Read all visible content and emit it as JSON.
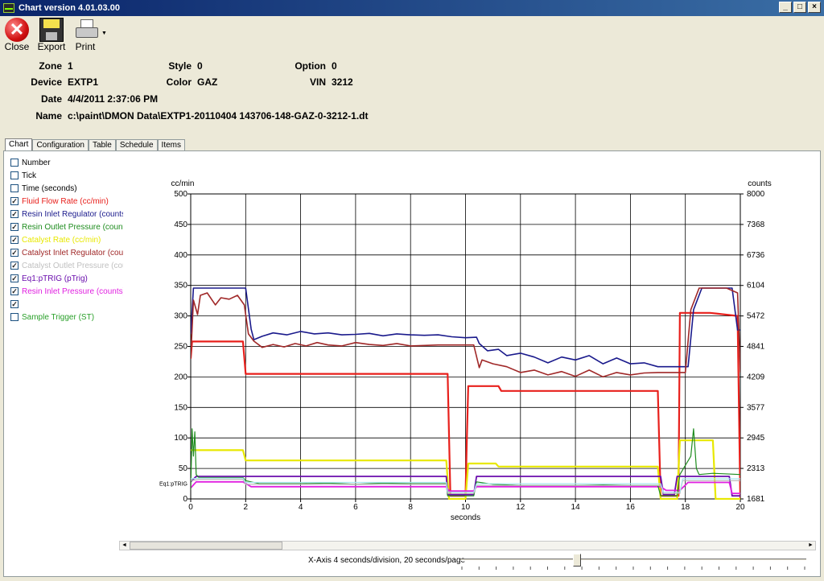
{
  "window": {
    "title": "Chart  version  4.01.03.00",
    "minimize": "_",
    "maximize": "□",
    "close": "×"
  },
  "toolbar": {
    "close_label": "Close",
    "close_glyph": "✕",
    "export_label": "Export",
    "print_label": "Print",
    "print_dropdown": "▼"
  },
  "info": {
    "zone_label": "Zone",
    "zone_value": "1",
    "style_label": "Style",
    "style_value": "0",
    "option_label": "Option",
    "option_value": "0",
    "device_label": "Device",
    "device_value": "EXTP1",
    "color_label": "Color",
    "color_value": "GAZ",
    "vin_label": "VIN",
    "vin_value": "3212",
    "date_label": "Date",
    "date_value": "4/4/2011 2:37:06 PM",
    "name_label": "Name",
    "name_value": "c:\\paint\\DMON  Data\\EXTP1-20110404  143706-148-GAZ-0-3212-1.dt"
  },
  "tabs": [
    "Chart",
    "Configuration",
    "Table",
    "Schedule",
    "Items"
  ],
  "legend": [
    {
      "label": "Number",
      "checked": false,
      "color": "#000000"
    },
    {
      "label": "Tick",
      "checked": false,
      "color": "#000000"
    },
    {
      "label": "Time (seconds)",
      "checked": false,
      "color": "#000000"
    },
    {
      "label": "Fluid Flow Rate (cc/min)",
      "checked": true,
      "color": "#e8201c"
    },
    {
      "label": "Resin Inlet Regulator (counts)",
      "checked": true,
      "color": "#1a1a8c"
    },
    {
      "label": "Resin Outlet Pressure (counts)",
      "checked": true,
      "color": "#1e8c1e"
    },
    {
      "label": "Catalyst Rate (cc/min)",
      "checked": true,
      "color": "#e8e800"
    },
    {
      "label": "Catalyst Inlet Regulator (counts)",
      "checked": true,
      "color": "#a02828"
    },
    {
      "label": "Catalyst Outlet Pressure (counts)",
      "checked": true,
      "color": "#c0c0c0"
    },
    {
      "label": "Eq1:pTRIG (pTrig)",
      "checked": true,
      "color": "#6a0dad"
    },
    {
      "label": "Resin Inlet Pressure (counts)",
      "checked": true,
      "color": "#e020e0"
    },
    {
      "label": "",
      "checked": true,
      "color": "#a8e8f0"
    },
    {
      "label": "Sample Trigger (ST)",
      "checked": false,
      "color": "#2aa02a"
    }
  ],
  "scroll": {
    "left": "◄",
    "right": "►"
  },
  "footer": {
    "xaxis_text": "X-Axis 4 seconds/division, 20 seconds/page"
  },
  "chart_data": {
    "type": "line",
    "xlabel": "seconds",
    "ylabel_left": "cc/min",
    "ylabel_right": "counts",
    "xlim": [
      0,
      20
    ],
    "ylim_left": [
      0,
      500
    ],
    "ylim_right": [
      1681,
      8000
    ],
    "x_ticks": [
      "0",
      "2",
      "4",
      "6",
      "8",
      "10",
      "12",
      "14",
      "16",
      "18",
      "20"
    ],
    "y_ticks_left": [
      "0",
      "50",
      "100",
      "150",
      "200",
      "250",
      "300",
      "350",
      "400",
      "450",
      "500"
    ],
    "y_ticks_right": [
      "1681",
      "2313",
      "2945",
      "3577",
      "4209",
      "4841",
      "5472",
      "6104",
      "6736",
      "7368",
      "8000"
    ],
    "annotation": "Eq1:pTRIG",
    "grid": true,
    "series": [
      {
        "name": "Fluid Flow Rate (cc/min)",
        "axis": "left",
        "color": "#e8201c",
        "width": 2.2,
        "x": [
          0,
          0.05,
          1.9,
          2.0,
          9.35,
          9.45,
          9.9,
          10.0,
          10.05,
          10.1,
          11.2,
          11.3,
          17.0,
          17.1,
          17.75,
          17.8,
          18.9,
          19.9,
          20.0
        ],
        "y": [
          230,
          258,
          258,
          205,
          205,
          5,
          5,
          5,
          100,
          185,
          185,
          177,
          177,
          5,
          5,
          305,
          305,
          300,
          0
        ]
      },
      {
        "name": "Resin Inlet Regulator (counts)",
        "axis": "right",
        "color": "#1a1a8c",
        "width": 1.6,
        "x": [
          0,
          0.1,
          0.2,
          1.2,
          2.0,
          2.2,
          2.3,
          2.6,
          3.0,
          3.5,
          4.0,
          4.5,
          5.0,
          5.5,
          6.0,
          6.5,
          7.0,
          7.5,
          8.0,
          8.5,
          9.0,
          9.5,
          10.0,
          10.4,
          10.5,
          10.8,
          11.2,
          11.5,
          12.0,
          12.5,
          13.0,
          13.5,
          14.0,
          14.5,
          15.0,
          15.5,
          16.0,
          16.5,
          17.0,
          17.3,
          17.6,
          17.8,
          18.1,
          18.3,
          18.6,
          18.9,
          19.3,
          19.7,
          19.9,
          20.0
        ],
        "y": [
          5100,
          6050,
          6050,
          6050,
          6050,
          5200,
          4980,
          5050,
          5120,
          5080,
          5150,
          5100,
          5120,
          5080,
          5090,
          5110,
          5060,
          5100,
          5080,
          5070,
          5080,
          5040,
          5020,
          5030,
          4900,
          4750,
          4780,
          4650,
          4700,
          4620,
          4500,
          4620,
          4560,
          4650,
          4480,
          4600,
          4480,
          4500,
          4420,
          4420,
          4420,
          4420,
          4420,
          5600,
          6050,
          6050,
          6050,
          6050,
          5180,
          5180
        ]
      },
      {
        "name": "Catalyst Inlet Regulator (counts)",
        "axis": "right",
        "color": "#a02828",
        "width": 1.6,
        "x": [
          0,
          0.1,
          0.25,
          0.35,
          0.6,
          0.9,
          1.1,
          1.4,
          1.7,
          1.95,
          2.1,
          2.3,
          2.6,
          3.0,
          3.4,
          3.8,
          4.2,
          4.6,
          5.0,
          5.5,
          6.0,
          6.5,
          7.0,
          7.5,
          8.0,
          8.5,
          9.0,
          9.5,
          10.0,
          10.3,
          10.5,
          10.6,
          11.0,
          11.5,
          12.0,
          12.5,
          13.0,
          13.5,
          14.0,
          14.5,
          15.0,
          15.5,
          16.0,
          16.5,
          17.0,
          17.3,
          17.8,
          18.0,
          18.2,
          18.5,
          19.0,
          19.5,
          19.9,
          20.0
        ],
        "y": [
          4600,
          5800,
          5500,
          5900,
          5950,
          5700,
          5850,
          5820,
          5900,
          5700,
          5100,
          4950,
          4820,
          4880,
          4830,
          4900,
          4850,
          4920,
          4870,
          4850,
          4920,
          4880,
          4860,
          4900,
          4850,
          4860,
          4870,
          4870,
          4870,
          4870,
          4400,
          4560,
          4480,
          4420,
          4300,
          4350,
          4250,
          4320,
          4220,
          4350,
          4210,
          4300,
          4250,
          4290,
          4300,
          4300,
          4300,
          4300,
          5600,
          6050,
          6050,
          6050,
          5950,
          4300
        ]
      },
      {
        "name": "Catalyst Rate (cc/min)",
        "axis": "left",
        "color": "#e8e800",
        "width": 2.2,
        "x": [
          0,
          1.9,
          2.0,
          9.3,
          9.4,
          10.0,
          10.1,
          11.1,
          11.2,
          17.0,
          17.1,
          17.7,
          17.8,
          19.0,
          19.1,
          20.0
        ],
        "y": [
          80,
          80,
          63,
          63,
          0,
          0,
          58,
          58,
          53,
          53,
          0,
          0,
          96,
          96,
          0,
          0
        ]
      },
      {
        "name": "Eq1:pTRIG (pTrig)",
        "axis": "left",
        "color": "#6a0dad",
        "width": 1.8,
        "x": [
          0,
          0.2,
          1.9,
          2.0,
          9.3,
          9.35,
          10.3,
          10.4,
          17.1,
          17.2,
          17.6,
          17.7,
          19.6,
          19.7,
          20.0
        ],
        "y": [
          28,
          37,
          37,
          37,
          37,
          7,
          7,
          37,
          37,
          7,
          7,
          37,
          37,
          5,
          5
        ]
      },
      {
        "name": "Resin Inlet Pressure (counts)",
        "axis": "left",
        "color": "#e020e0",
        "width": 1.8,
        "x": [
          0,
          0.2,
          1.9,
          2.2,
          9.3,
          9.4,
          10.3,
          10.4,
          17.1,
          17.3,
          17.8,
          18.1,
          19.6,
          19.7,
          20.0
        ],
        "y": [
          18,
          28,
          28,
          20,
          20,
          13,
          13,
          20,
          20,
          14,
          14,
          27,
          27,
          9,
          9
        ]
      },
      {
        "name": "Resin Outlet Pressure (counts)",
        "axis": "left",
        "color": "#1e8c1e",
        "width": 1.2,
        "x": [
          0,
          0.05,
          0.1,
          0.15,
          0.2,
          0.3,
          1.9,
          2.0,
          2.5,
          3,
          4,
          5,
          6,
          7,
          8,
          9,
          9.3,
          9.35,
          10.3,
          10.4,
          11,
          12,
          13,
          14,
          15,
          16,
          17.0,
          17.1,
          17.7,
          17.8,
          18.2,
          18.3,
          18.4,
          18.5,
          19.0,
          20.0
        ],
        "y": [
          15,
          115,
          70,
          110,
          40,
          35,
          35,
          30,
          25,
          25,
          25,
          26,
          24,
          26,
          25,
          25,
          25,
          5,
          5,
          28,
          24,
          22,
          22,
          22,
          23,
          22,
          22,
          5,
          5,
          40,
          70,
          115,
          50,
          40,
          42,
          40
        ]
      },
      {
        "name": "Catalyst Outlet Pressure (counts)",
        "axis": "left",
        "color": "#b8b8b8",
        "width": 1.2,
        "x": [
          0,
          0.3,
          1.9,
          2.0,
          9.3,
          9.35,
          10.3,
          10.4,
          17.1,
          17.2,
          17.8,
          17.9,
          19.6,
          20.0
        ],
        "y": [
          30,
          32,
          32,
          24,
          24,
          9,
          9,
          22,
          22,
          9,
          9,
          30,
          30,
          30
        ]
      },
      {
        "name": "",
        "axis": "left",
        "color": "#a8e8f0",
        "width": 1.2,
        "x": [
          0,
          0.3,
          1.9,
          2.0,
          9.3,
          9.35,
          10.3,
          10.4,
          17.1,
          17.2,
          17.8,
          17.9,
          19.6,
          20.0
        ],
        "y": [
          33,
          34,
          34,
          27,
          27,
          11,
          11,
          25,
          25,
          11,
          11,
          33,
          33,
          33
        ]
      }
    ]
  }
}
